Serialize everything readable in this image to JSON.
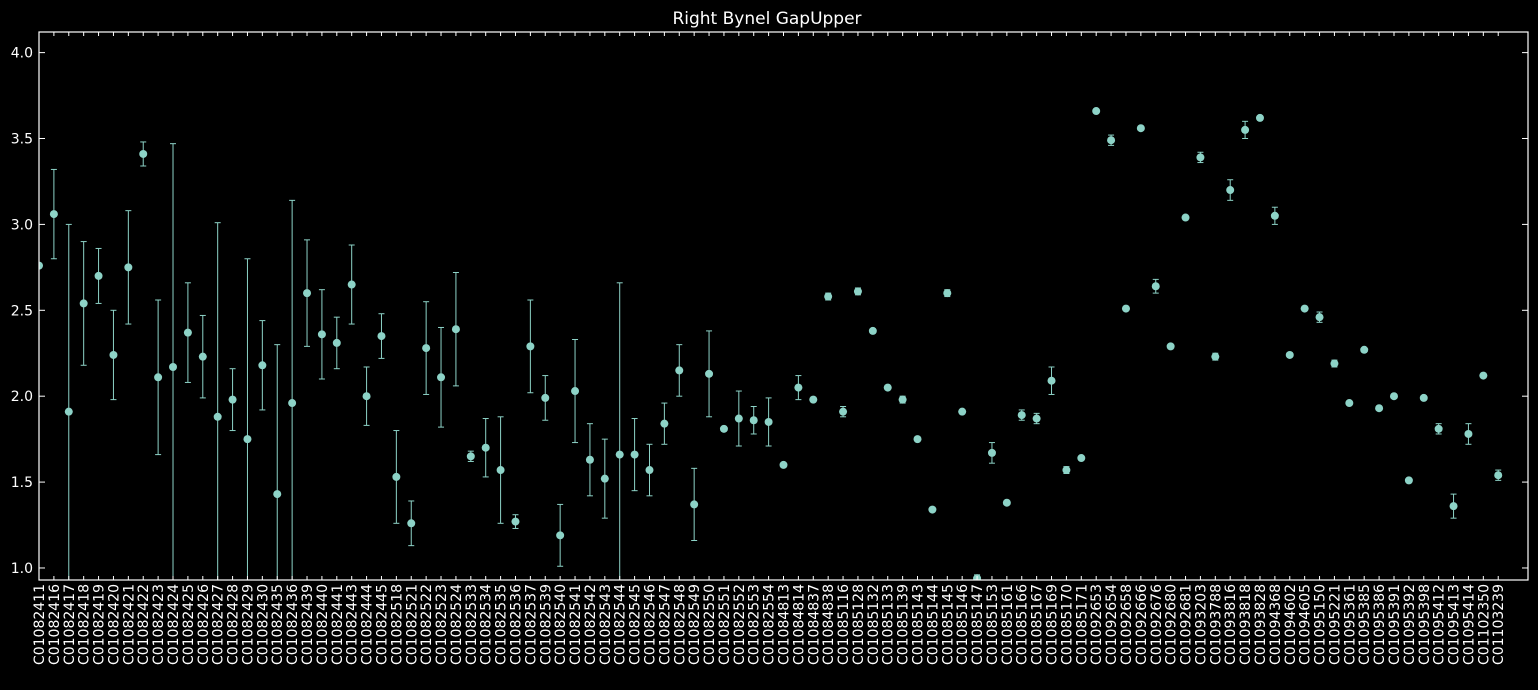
{
  "chart_data": {
    "type": "errorbar",
    "title": "Right Bynel GapUpper",
    "categories": [
      "C01082411",
      "C01082416",
      "C01082417",
      "C01082418",
      "C01082419",
      "C01082420",
      "C01082421",
      "C01082422",
      "C01082423",
      "C01082424",
      "C01082425",
      "C01082426",
      "C01082427",
      "C01082428",
      "C01082429",
      "C01082430",
      "C01082435",
      "C01082436",
      "C01082439",
      "C01082440",
      "C01082441",
      "C01082443",
      "C01082444",
      "C01082445",
      "C01082518",
      "C01082521",
      "C01082522",
      "C01082523",
      "C01082524",
      "C01082533",
      "C01082534",
      "C01082535",
      "C01082536",
      "C01082537",
      "C01082539",
      "C01082540",
      "C01082541",
      "C01082542",
      "C01082543",
      "C01082544",
      "C01082545",
      "C01082546",
      "C01082547",
      "C01082548",
      "C01082549",
      "C01082550",
      "C01082551",
      "C01082552",
      "C01082553",
      "C01082554",
      "C01084813",
      "C01084814",
      "C01084837",
      "C01084838",
      "C01085116",
      "C01085128",
      "C01085132",
      "C01085133",
      "C01085139",
      "C01085143",
      "C01085144",
      "C01085145",
      "C01085146",
      "C01085147",
      "C01085153",
      "C01085161",
      "C01085166",
      "C01085167",
      "C01085169",
      "C01085170",
      "C01085171",
      "C01092653",
      "C01092654",
      "C01092658",
      "C01092666",
      "C01092676",
      "C01092680",
      "C01092681",
      "C01093203",
      "C01093788",
      "C01093816",
      "C01093818",
      "C01093828",
      "C01094368",
      "C01094602",
      "C01094605",
      "C01095150",
      "C01095221",
      "C01095361",
      "C01095385",
      "C01095386",
      "C01095391",
      "C01095392",
      "C01095398",
      "C01095412",
      "C01095413",
      "C01095414",
      "C01102350",
      "C01103239"
    ],
    "values": [
      2.76,
      3.06,
      1.91,
      2.54,
      2.7,
      2.24,
      2.75,
      3.41,
      2.11,
      2.17,
      2.37,
      2.23,
      1.88,
      1.98,
      1.75,
      2.18,
      1.43,
      1.96,
      2.6,
      2.36,
      2.31,
      2.65,
      2.0,
      2.35,
      1.53,
      1.26,
      2.28,
      2.11,
      2.39,
      1.65,
      1.7,
      1.57,
      1.27,
      2.29,
      1.99,
      1.19,
      2.03,
      1.63,
      1.52,
      1.66,
      1.66,
      1.57,
      1.84,
      2.15,
      1.37,
      2.13,
      1.81,
      1.87,
      1.86,
      1.85,
      1.6,
      2.05,
      1.98,
      2.58,
      1.91,
      2.61,
      2.38,
      2.05,
      1.98,
      1.75,
      1.34,
      2.6,
      1.91,
      0.94,
      1.67,
      1.38,
      1.89,
      1.87,
      2.09,
      1.57,
      1.64,
      3.66,
      3.49,
      2.51,
      3.56,
      2.64,
      2.29,
      3.04,
      3.39,
      2.23,
      3.2,
      3.55,
      3.62,
      3.05,
      2.24,
      2.51,
      2.46,
      2.19,
      1.96,
      2.27,
      1.93,
      2.0,
      1.51,
      1.99,
      1.81,
      1.36,
      1.78,
      2.12,
      1.54
    ],
    "errors": [
      0,
      0.26,
      1.09,
      0.36,
      0.16,
      0.26,
      0.33,
      0.07,
      0.45,
      1.3,
      0.29,
      0.24,
      1.13,
      0.18,
      1.05,
      0.26,
      0.87,
      1.18,
      0.31,
      0.26,
      0.15,
      0.23,
      0.17,
      0.13,
      0.27,
      0.13,
      0.27,
      0.29,
      0.33,
      0.03,
      0.17,
      0.31,
      0.04,
      0.27,
      0.13,
      0.18,
      0.3,
      0.21,
      0.23,
      1.0,
      0.21,
      0.15,
      0.12,
      0.15,
      0.21,
      0.25,
      0,
      0.16,
      0.08,
      0.14,
      0,
      0.07,
      0,
      0.02,
      0.03,
      0.02,
      0,
      0,
      0.02,
      0,
      0,
      0.02,
      0,
      0.02,
      0.06,
      0,
      0.03,
      0.03,
      0.08,
      0.02,
      0,
      0,
      0.03,
      0,
      0,
      0.04,
      0,
      0,
      0.03,
      0.02,
      0.06,
      0.05,
      0,
      0.05,
      0,
      0,
      0.03,
      0.02,
      0,
      0,
      0,
      0,
      0.01,
      0,
      0.03,
      0.07,
      0.06,
      0,
      0.03
    ],
    "color": "#8dd3c7",
    "ylim": [
      0.93,
      4.12
    ],
    "yticks": [
      {
        "value": 1,
        "label": "1.0"
      },
      {
        "value": 1.5,
        "label": "1.5"
      },
      {
        "value": 2,
        "label": "2.0"
      },
      {
        "value": 2.5,
        "label": "2.5"
      },
      {
        "value": 3,
        "label": "3.0"
      },
      {
        "value": 3.5,
        "label": "3.5"
      },
      {
        "value": 4,
        "label": "4.0"
      }
    ]
  }
}
